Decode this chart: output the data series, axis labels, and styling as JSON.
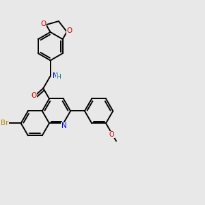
{
  "background_color": "#e8e8e8",
  "bond_color": "#000000",
  "atom_colors": {
    "N": "#0000cc",
    "O": "#cc0000",
    "Br": "#b8860b",
    "H": "#008080",
    "C": "#000000"
  },
  "figsize": [
    3.0,
    3.0
  ],
  "dpi": 100
}
